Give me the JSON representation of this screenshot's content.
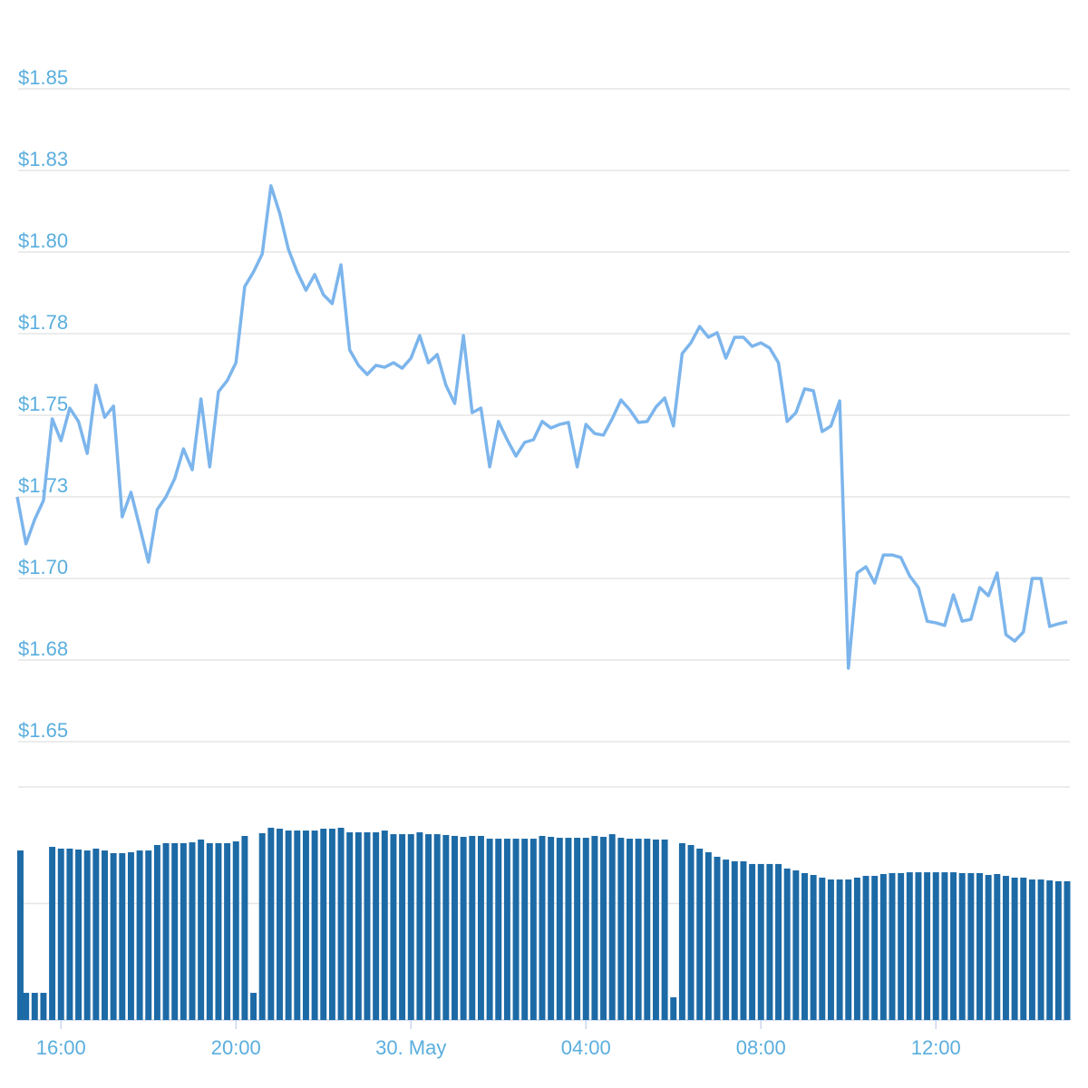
{
  "chart_data": [
    {
      "type": "line",
      "color": "#7cb5ec",
      "grid": true,
      "xlim": [
        15,
        39
      ],
      "ylim": [
        1.65,
        1.85
      ],
      "yticks": [
        {
          "value": 1.65,
          "label": "$1.65"
        },
        {
          "value": 1.675,
          "label": "$1.68"
        },
        {
          "value": 1.7,
          "label": "$1.70"
        },
        {
          "value": 1.725,
          "label": "$1.73"
        },
        {
          "value": 1.75,
          "label": "$1.75"
        },
        {
          "value": 1.775,
          "label": "$1.78"
        },
        {
          "value": 1.8,
          "label": "$1.80"
        },
        {
          "value": 1.825,
          "label": "$1.83"
        },
        {
          "value": 1.85,
          "label": "$1.85"
        }
      ],
      "x": [
        15,
        15.2,
        15.4,
        15.6,
        15.8,
        16,
        16.2,
        16.4,
        16.6,
        16.8,
        17,
        17.2,
        17.4,
        17.6,
        17.8,
        18,
        18.2,
        18.4,
        18.6,
        18.8,
        19,
        19.2,
        19.4,
        19.6,
        19.8,
        20,
        20.2,
        20.4,
        20.6,
        20.8,
        21,
        21.2,
        21.4,
        21.6,
        21.8,
        22,
        22.2,
        22.4,
        22.6,
        22.8,
        23,
        23.2,
        23.4,
        23.6,
        23.8,
        24,
        24.2,
        24.4,
        24.6,
        24.8,
        25,
        25.2,
        25.4,
        25.6,
        25.8,
        26,
        26.2,
        26.4,
        26.6,
        26.8,
        27,
        27.2,
        27.4,
        27.6,
        27.8,
        28,
        28.2,
        28.4,
        28.6,
        28.8,
        29,
        29.2,
        29.4,
        29.6,
        29.8,
        30,
        30.2,
        30.4,
        30.6,
        30.8,
        31,
        31.2,
        31.4,
        31.6,
        31.8,
        32,
        32.2,
        32.4,
        32.6,
        32.8,
        33,
        33.2,
        33.4,
        33.6,
        33.8,
        34,
        34.2,
        34.4,
        34.6,
        34.8,
        35,
        35.2,
        35.4,
        35.6,
        35.8,
        36,
        36.2,
        36.4,
        36.6,
        36.8,
        37,
        37.2,
        37.4,
        37.6,
        37.8,
        38,
        38.2,
        38.4,
        38.6,
        38.8,
        39
      ],
      "values": [
        1.725,
        1.7106,
        1.7181,
        1.7239,
        1.7489,
        1.7422,
        1.7522,
        1.7481,
        1.7383,
        1.7592,
        1.7494,
        1.7528,
        1.7189,
        1.7264,
        1.7158,
        1.705,
        1.7211,
        1.725,
        1.7306,
        1.7397,
        1.7333,
        1.755,
        1.7342,
        1.7572,
        1.7606,
        1.7661,
        1.7894,
        1.7939,
        1.7994,
        1.8203,
        1.8119,
        1.8008,
        1.7939,
        1.7883,
        1.7931,
        1.7869,
        1.7842,
        1.7961,
        1.77,
        1.7653,
        1.7625,
        1.7653,
        1.7647,
        1.7661,
        1.7644,
        1.7675,
        1.7744,
        1.7661,
        1.7686,
        1.7592,
        1.7536,
        1.7744,
        1.7508,
        1.7522,
        1.7342,
        1.7481,
        1.7425,
        1.7375,
        1.7417,
        1.7425,
        1.7481,
        1.7461,
        1.7472,
        1.7478,
        1.7342,
        1.7472,
        1.7444,
        1.7439,
        1.7489,
        1.7547,
        1.7517,
        1.7478,
        1.7481,
        1.7525,
        1.7553,
        1.7467,
        1.7689,
        1.7722,
        1.7772,
        1.7739,
        1.7753,
        1.7675,
        1.7739,
        1.7739,
        1.7711,
        1.7722,
        1.7706,
        1.7661,
        1.7481,
        1.7508,
        1.7581,
        1.7575,
        1.745,
        1.7467,
        1.7544,
        1.6725,
        1.7017,
        1.7036,
        1.6986,
        1.7072,
        1.7072,
        1.7064,
        1.7008,
        1.6972,
        1.6869,
        1.6864,
        1.6856,
        1.695,
        1.6869,
        1.6875,
        1.6972,
        1.6947,
        1.7017,
        1.6828,
        1.6808,
        1.6836,
        1.7,
        1.7,
        1.6853,
        1.6861,
        1.6867
      ]
    },
    {
      "type": "bar",
      "color": "#1c6aa6",
      "grid": true,
      "xlim": [
        15,
        39
      ],
      "ylim": [
        0,
        2
      ],
      "yticks": [
        1,
        2
      ],
      "xticks": [
        {
          "value": 16,
          "label": "16:00"
        },
        {
          "value": 20,
          "label": "20:00"
        },
        {
          "value": 24,
          "label": "30. May"
        },
        {
          "value": 28,
          "label": "04:00"
        },
        {
          "value": 32,
          "label": "08:00"
        },
        {
          "value": 36,
          "label": "12:00"
        }
      ],
      "x": [
        15,
        15.2,
        15.4,
        15.6,
        15.8,
        16,
        16.2,
        16.4,
        16.6,
        16.8,
        17,
        17.2,
        17.4,
        17.6,
        17.8,
        18,
        18.2,
        18.4,
        18.6,
        18.8,
        19,
        19.2,
        19.4,
        19.6,
        19.8,
        20,
        20.2,
        20.4,
        20.6,
        20.8,
        21,
        21.2,
        21.4,
        21.6,
        21.8,
        22,
        22.2,
        22.4,
        22.6,
        22.8,
        23,
        23.2,
        23.4,
        23.6,
        23.8,
        24,
        24.2,
        24.4,
        24.6,
        24.8,
        25,
        25.2,
        25.4,
        25.6,
        25.8,
        26,
        26.2,
        26.4,
        26.6,
        26.8,
        27,
        27.2,
        27.4,
        27.6,
        27.8,
        28,
        28.2,
        28.4,
        28.6,
        28.8,
        29,
        29.2,
        29.4,
        29.6,
        29.8,
        30,
        30.2,
        30.4,
        30.6,
        30.8,
        31,
        31.2,
        31.4,
        31.6,
        31.8,
        32,
        32.2,
        32.4,
        32.6,
        32.8,
        33,
        33.2,
        33.4,
        33.6,
        33.8,
        34,
        34.2,
        34.4,
        34.6,
        34.8,
        35,
        35.2,
        35.4,
        35.6,
        35.8,
        36,
        36.2,
        36.4,
        36.6,
        36.8,
        37,
        37.2,
        37.4,
        37.6,
        37.8,
        38,
        38.2,
        38.4,
        38.6,
        38.8,
        39
      ],
      "values": [
        1.455,
        0.233,
        0.233,
        0.233,
        1.486,
        1.471,
        1.471,
        1.463,
        1.455,
        1.471,
        1.455,
        1.432,
        1.432,
        1.44,
        1.455,
        1.455,
        1.502,
        1.518,
        1.518,
        1.518,
        1.525,
        1.549,
        1.518,
        1.518,
        1.518,
        1.533,
        1.58,
        0.233,
        1.603,
        1.65,
        1.642,
        1.626,
        1.626,
        1.626,
        1.626,
        1.642,
        1.642,
        1.65,
        1.611,
        1.611,
        1.611,
        1.611,
        1.626,
        1.595,
        1.595,
        1.595,
        1.611,
        1.595,
        1.595,
        1.588,
        1.58,
        1.572,
        1.58,
        1.58,
        1.556,
        1.556,
        1.556,
        1.556,
        1.556,
        1.556,
        1.58,
        1.572,
        1.564,
        1.564,
        1.564,
        1.564,
        1.58,
        1.572,
        1.595,
        1.564,
        1.556,
        1.556,
        1.556,
        1.549,
        1.549,
        0.195,
        1.518,
        1.502,
        1.471,
        1.44,
        1.401,
        1.377,
        1.362,
        1.362,
        1.339,
        1.339,
        1.339,
        1.339,
        1.3,
        1.284,
        1.261,
        1.245,
        1.222,
        1.206,
        1.206,
        1.206,
        1.222,
        1.237,
        1.237,
        1.253,
        1.261,
        1.261,
        1.268,
        1.268,
        1.268,
        1.268,
        1.268,
        1.268,
        1.261,
        1.261,
        1.261,
        1.245,
        1.253,
        1.237,
        1.222,
        1.222,
        1.206,
        1.206,
        1.198,
        1.191,
        1.191
      ]
    }
  ]
}
